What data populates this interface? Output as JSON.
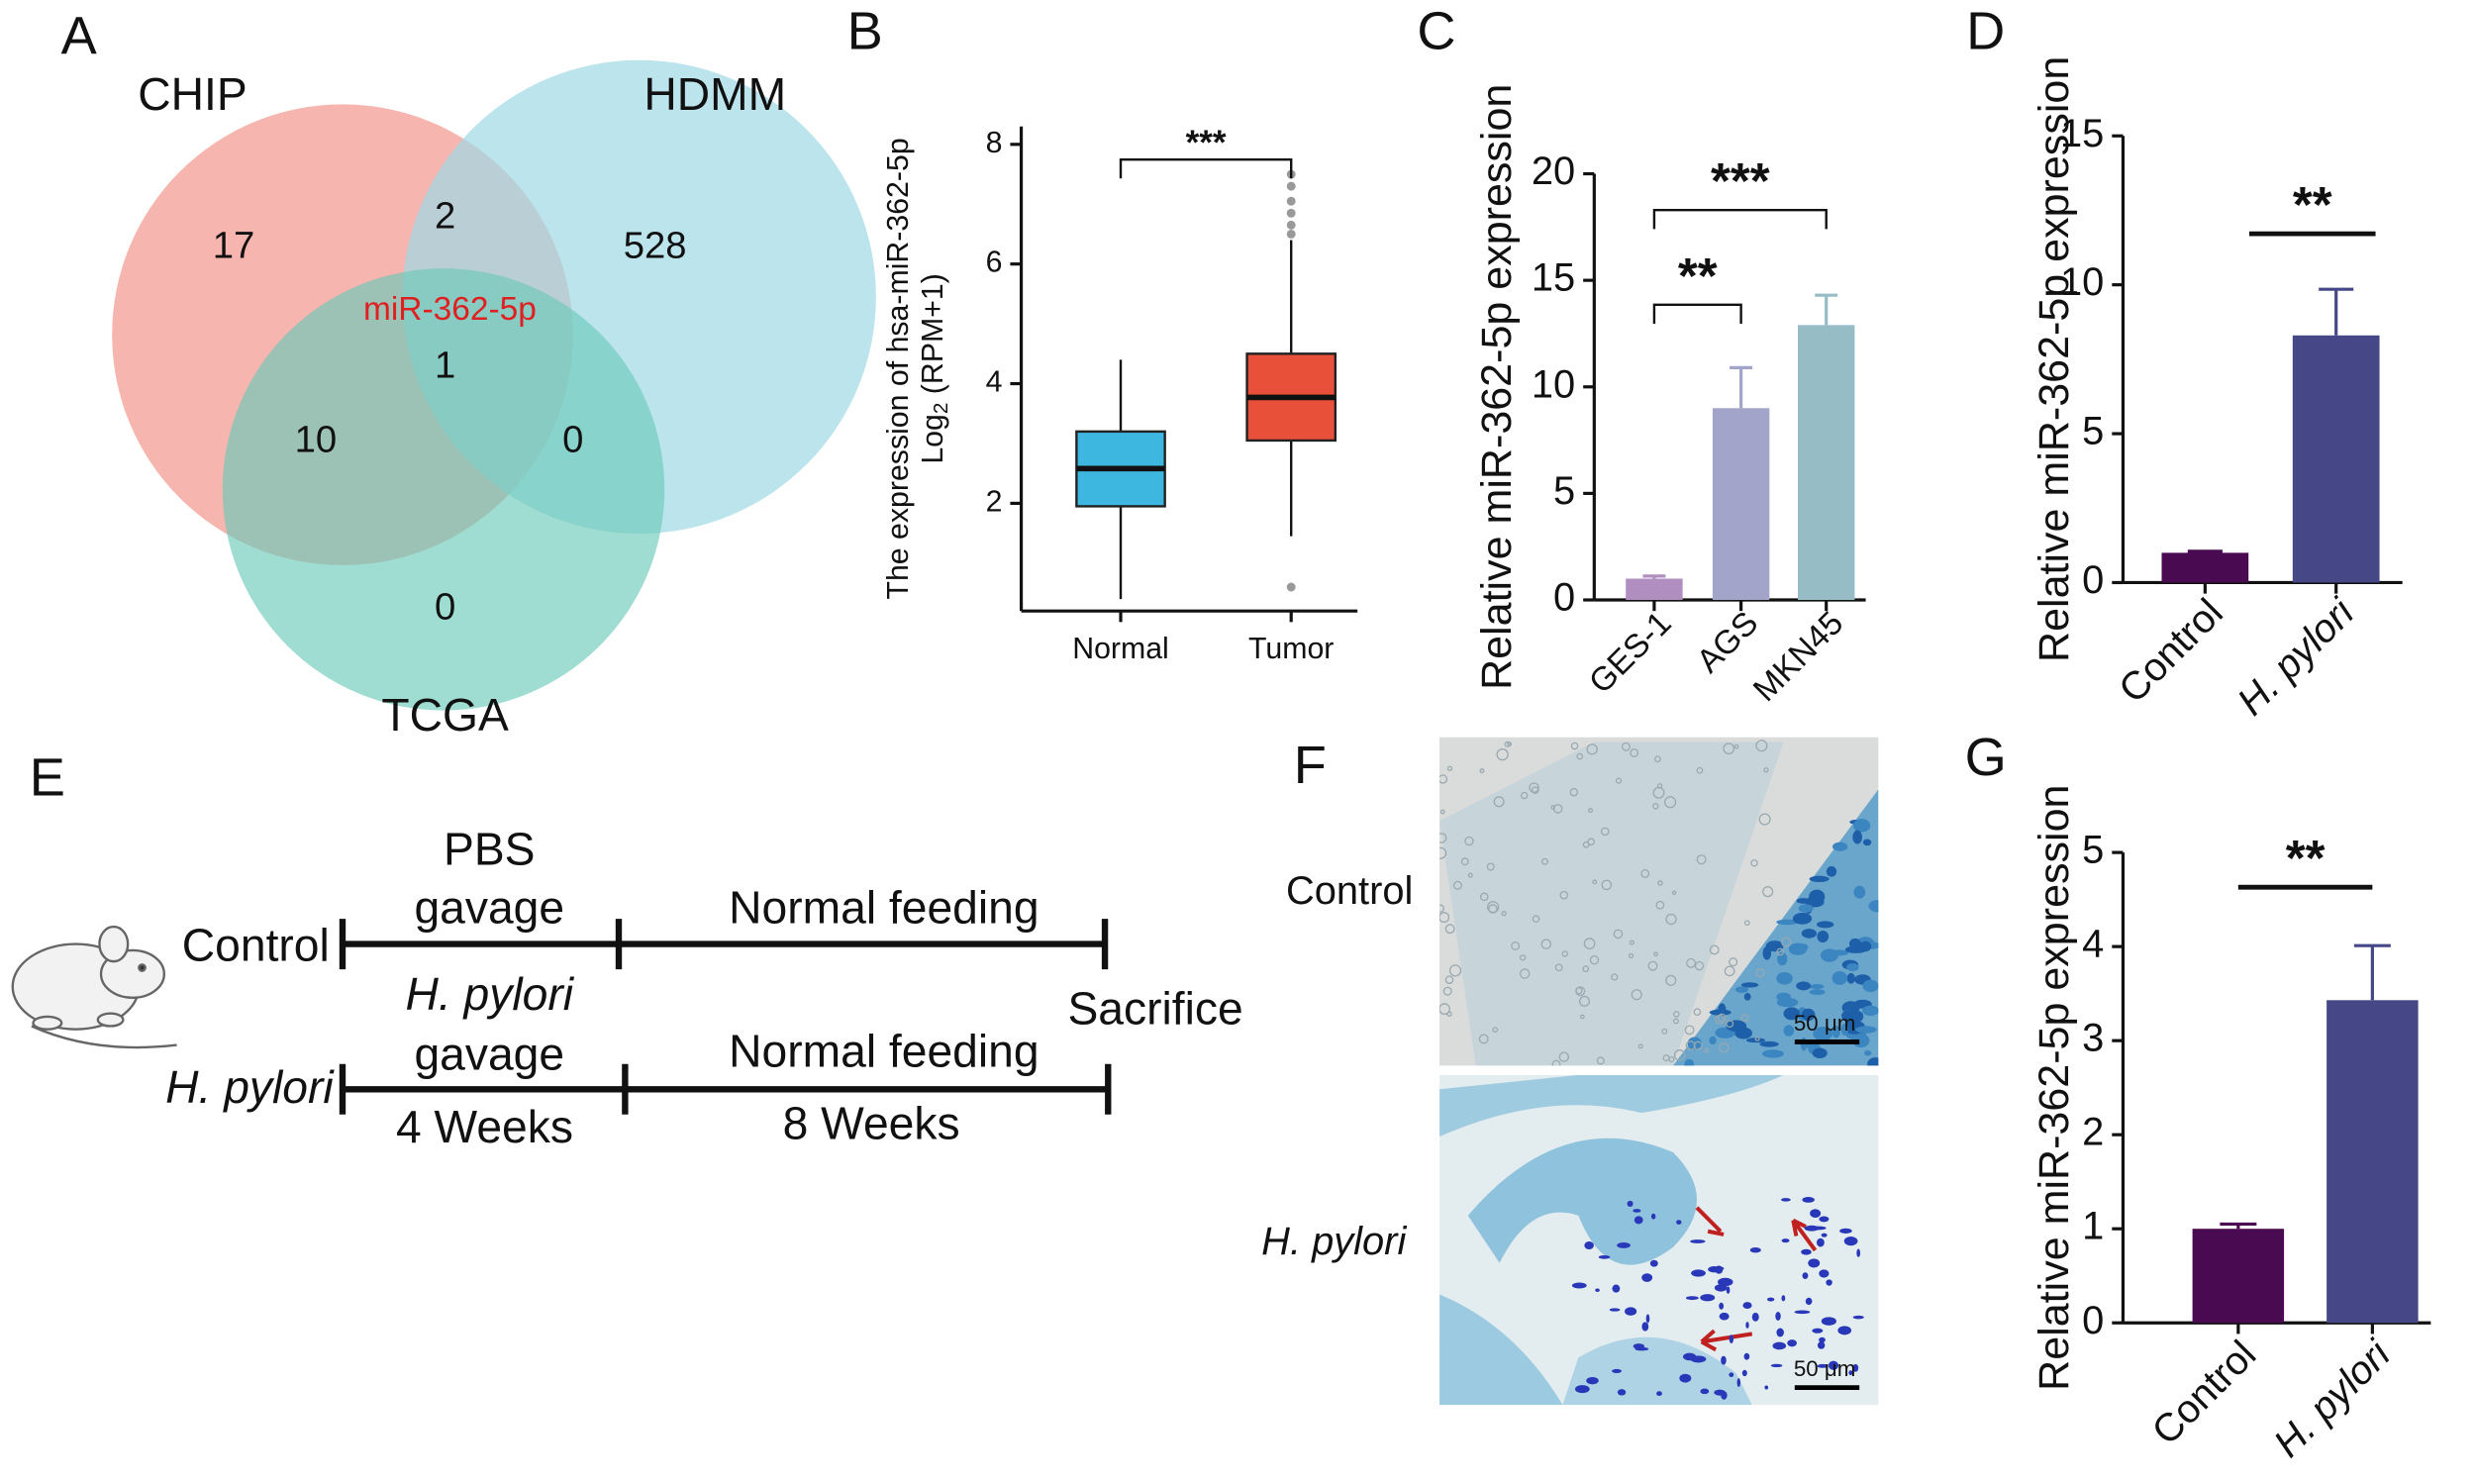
{
  "panel_labels": [
    "A",
    "B",
    "C",
    "D",
    "E",
    "F",
    "G"
  ],
  "venn": {
    "sets": [
      "CHIP",
      "HDMM",
      "TCGA"
    ],
    "regions": {
      "chip_only": 17,
      "chip_hdmm": 2,
      "hdmm_only": 528,
      "all": 1,
      "chip_tcga": 10,
      "hdmm_tcga": 0,
      "tcga_only": 0
    },
    "highlight": "miR-362-5p"
  },
  "chart_data": [
    {
      "type": "box",
      "ylabel": "The expression of hsa-miR-362-5p",
      "ylabel2": {
        "text": "Log",
        "sub": "2",
        "rest": " (RPM+1)"
      },
      "categories": [
        "Normal",
        "Tumor"
      ],
      "colors": [
        "#3db6e0",
        "#e8503a"
      ],
      "boxes": [
        {
          "whisker_low": 0.4,
          "q1": 1.95,
          "median": 2.58,
          "q3": 3.2,
          "whisker_high": 4.4,
          "outliers": []
        },
        {
          "whisker_low": 1.45,
          "q1": 3.05,
          "median": 3.77,
          "q3": 4.5,
          "whisker_high": 6.4,
          "outliers": [
            0.6,
            6.5,
            6.65,
            6.85,
            7.05,
            7.3,
            7.5
          ]
        }
      ],
      "ylim": [
        0.2,
        8.3
      ],
      "yticks": [
        2,
        4,
        6,
        8
      ],
      "significance": [
        {
          "label": "***",
          "pair": [
            0,
            1
          ]
        }
      ]
    },
    {
      "type": "bar",
      "ylabel": "Relative  miR-362-5p expression",
      "categories": [
        "GES-1",
        "AGS",
        "MKN45"
      ],
      "colors": [
        "#b08fc0",
        "#a2a5c9",
        "#96bcc6"
      ],
      "values": [
        1.0,
        9.0,
        12.9
      ],
      "errors": [
        0.12,
        1.9,
        1.4
      ],
      "ylim": [
        0,
        20
      ],
      "yticks": [
        0,
        5,
        10,
        15,
        20
      ],
      "significance": [
        {
          "label": "**",
          "pair": [
            0,
            1
          ]
        },
        {
          "label": "***",
          "pair": [
            0,
            2
          ]
        }
      ]
    },
    {
      "type": "bar",
      "ylabel": "Relative  miR-362-5p expression",
      "categories": [
        "Control",
        "H. pylori"
      ],
      "colors": [
        "#4a0a52",
        "#454786"
      ],
      "values": [
        1.0,
        8.3
      ],
      "errors": [
        0.05,
        1.55
      ],
      "ylim": [
        0,
        15
      ],
      "yticks": [
        0,
        5,
        10,
        15
      ],
      "significance": [
        {
          "label": "**",
          "pair": [
            0,
            1
          ]
        }
      ]
    },
    {
      "type": "bar",
      "ylabel": "Relative  miR-362-5p expression",
      "categories": [
        "Control",
        "H. pylori"
      ],
      "colors": [
        "#4a0a52",
        "#454786"
      ],
      "values": [
        1.0,
        3.43
      ],
      "errors": [
        0.05,
        0.58
      ],
      "ylim": [
        0,
        5
      ],
      "yticks": [
        0,
        1,
        2,
        3,
        4,
        5
      ],
      "significance": [
        {
          "label": "**",
          "pair": [
            0,
            1
          ]
        }
      ]
    }
  ],
  "timeline": {
    "groups": [
      {
        "name": "Control",
        "phase1": [
          "PBS",
          "gavage"
        ],
        "phase2": "Normal feeding"
      },
      {
        "name": "H. pylori",
        "phase1": [
          "H. pylori",
          "gavage"
        ],
        "phase2": "Normal feeding"
      }
    ],
    "end": "Sacrifice",
    "durations": [
      "4 Weeks",
      "8 Weeks"
    ]
  },
  "histology": {
    "rows": [
      "Control",
      "H. pylori"
    ],
    "scale_bars": [
      "50 μm",
      "50 μm"
    ]
  }
}
